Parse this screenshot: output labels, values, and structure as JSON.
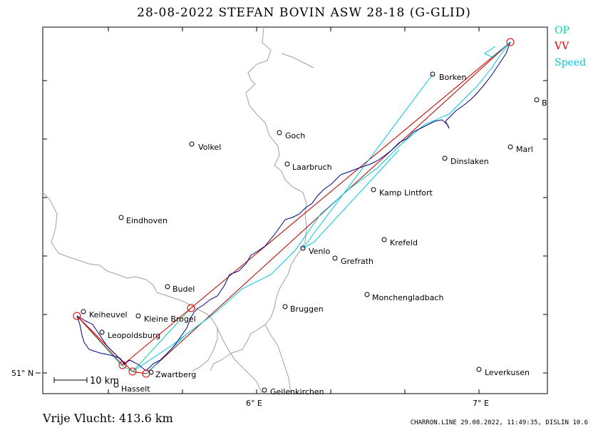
{
  "title": "28-08-2022   STEFAN BOVIN   ASW 28-18 (G-GLID)",
  "legend": {
    "op": {
      "label": "OP",
      "color": "#00d8a0"
    },
    "vv": {
      "label": "VV",
      "color": "#e00000"
    },
    "speed": {
      "label": "Speed",
      "color": "#00c8e0"
    }
  },
  "colors": {
    "track": "#000080",
    "border": "#a0a0a0",
    "frame": "#000000"
  },
  "towns": [
    {
      "name": "Borken"
    },
    {
      "name": "B"
    },
    {
      "name": "Goch"
    },
    {
      "name": "Volkel"
    },
    {
      "name": "Marl"
    },
    {
      "name": "Dinslaken"
    },
    {
      "name": "Laarbruch"
    },
    {
      "name": "Kamp Lintfort"
    },
    {
      "name": "Eindhoven"
    },
    {
      "name": "Krefeld"
    },
    {
      "name": "Venlo"
    },
    {
      "name": "Grefrath"
    },
    {
      "name": "Budel"
    },
    {
      "name": "Monchengladbach"
    },
    {
      "name": "Bruggen"
    },
    {
      "name": "Keiheuvel"
    },
    {
      "name": "Kleine Brogel"
    },
    {
      "name": "Leopoldsburg"
    },
    {
      "name": "Zwartberg"
    },
    {
      "name": "Leverkusen"
    },
    {
      "name": "Hasselt"
    },
    {
      "name": "Geilenkirchen"
    }
  ],
  "axes": {
    "lat_label": "51° N",
    "lon_labels": [
      "6° E",
      "7° E"
    ]
  },
  "scale_bar": {
    "label": "10  km"
  },
  "free_flight": "Vrije Vlucht:  413.6 km",
  "footer": "CHARRON.LINE 29.08.2022, 11:49:35, DISLIN 10.6"
}
